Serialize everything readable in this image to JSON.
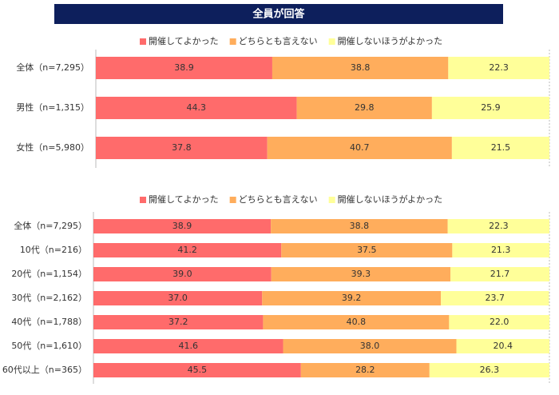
{
  "title": "全員が回答",
  "chart_data": [
    {
      "type": "stacked-bar-horizontal",
      "xlim": [
        0,
        100
      ],
      "categories": [
        "全体（n=7,295）",
        "男性（n=1,315）",
        "女性（n=5,980）"
      ],
      "series": [
        {
          "name": "開催してよかった",
          "color": "#ff6b6b",
          "values": [
            38.9,
            44.3,
            37.8
          ],
          "value_labels": [
            "38.9",
            "44.3",
            "37.8"
          ]
        },
        {
          "name": "どちらとも言えない",
          "color": "#ffad5c",
          "values": [
            38.8,
            29.8,
            40.7
          ],
          "value_labels": [
            "38.8",
            "29.8",
            "40.7"
          ]
        },
        {
          "name": "開催しないほうがよかった",
          "color": "#ffff99",
          "values": [
            22.3,
            25.9,
            21.5
          ],
          "value_labels": [
            "22.3",
            "25.9",
            "21.5"
          ]
        }
      ]
    },
    {
      "type": "stacked-bar-horizontal",
      "xlim": [
        0,
        100
      ],
      "categories": [
        "全体（n=7,295）",
        "10代（n=216）",
        "20代（n=1,154）",
        "30代（n=2,162）",
        "40代（n=1,788）",
        "50代（n=1,610）",
        "60代以上（n=365）"
      ],
      "series": [
        {
          "name": "開催してよかった",
          "color": "#ff6b6b",
          "values": [
            38.9,
            41.2,
            39.0,
            37.0,
            37.2,
            41.6,
            45.5
          ],
          "value_labels": [
            "38.9",
            "41.2",
            "39.0",
            "37.0",
            "37.2",
            "41.6",
            "45.5"
          ]
        },
        {
          "name": "どちらとも言えない",
          "color": "#ffad5c",
          "values": [
            38.8,
            37.5,
            39.3,
            39.2,
            40.8,
            38.0,
            28.2
          ],
          "value_labels": [
            "38.8",
            "37.5",
            "39.3",
            "39.2",
            "40.8",
            "38.0",
            "28.2"
          ]
        },
        {
          "name": "開催しないほうがよかった",
          "color": "#ffff99",
          "values": [
            22.3,
            21.3,
            21.7,
            23.7,
            22.0,
            20.4,
            26.3
          ],
          "value_labels": [
            "22.3",
            "21.3",
            "21.7",
            "23.7",
            "22.0",
            "20.4",
            "26.3"
          ]
        }
      ]
    }
  ]
}
